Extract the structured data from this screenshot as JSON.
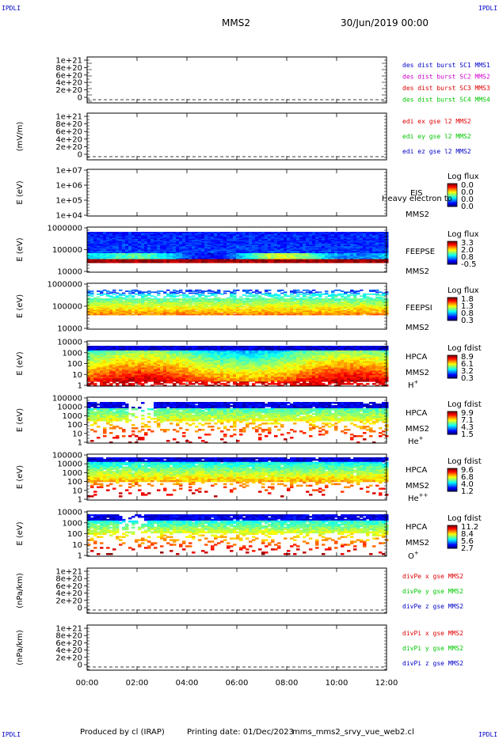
{
  "corner_tag": "IPDLI",
  "header": {
    "spacecraft": "MMS2",
    "date": "30/Jun/2019 00:00"
  },
  "footer": {
    "produced_by": "Produced by cl (IRAP)",
    "printing_date": "Printing date: 01/Dec/2023",
    "filename": "mms_mms2_srvy_vue_web2.cl"
  },
  "time_ticks": [
    "00:00",
    "02:00",
    "04:00",
    "06:00",
    "08:00",
    "10:00",
    "12:00"
  ],
  "colors": {
    "red": "#e00000",
    "green": "#00c800",
    "blue": "#0000c8",
    "magenta": "#d000d0"
  },
  "chart_data": [
    {
      "type": "line",
      "ylabel": "",
      "yticks": [
        "1e+21",
        "8e+20",
        "6e+20",
        "4e+20",
        "2e+20",
        "0"
      ],
      "legend": [
        {
          "text": "des dist burst SC1 MMS1",
          "color": "#0000c8"
        },
        {
          "text": "des dist burst SC2 MMS2",
          "color": "#d000d0"
        },
        {
          "text": "des dist burst SC3 MMS3",
          "color": "#e00000"
        },
        {
          "text": "des dist burst SC4 MMS4",
          "color": "#00c800"
        }
      ]
    },
    {
      "type": "line",
      "ylabel": "(mV/m)",
      "yticks": [
        "1e+21",
        "8e+20",
        "6e+20",
        "4e+20",
        "2e+20",
        "0"
      ],
      "legend": [
        {
          "text": "edi ex gse l2 MMS2",
          "color": "#e00000"
        },
        {
          "text": "edi ey gse l2 MMS2",
          "color": "#00c800"
        },
        {
          "text": "edi ez gse l2 MMS2",
          "color": "#0000c8"
        }
      ]
    },
    {
      "type": "heatmap",
      "ylabel": "E (eV)",
      "yticks": [
        "1e+07",
        "1e+06",
        "1e+05",
        "1e+04"
      ],
      "labels": [
        "EIS",
        "Heavy electron to",
        "MMS2"
      ],
      "colorbar": {
        "title": "Log flux",
        "ticks": [
          "0.0",
          "0.0",
          "0.0",
          "0.0"
        ]
      }
    },
    {
      "type": "heatmap",
      "ylabel": "E (eV)",
      "yticks": [
        "1000000",
        "100000",
        "10000"
      ],
      "labels": [
        "FEEPSE",
        "MMS2"
      ],
      "colorbar": {
        "title": "Log flux",
        "ticks": [
          "3.3",
          "2.0",
          "0.8",
          "-0.5"
        ]
      }
    },
    {
      "type": "heatmap",
      "ylabel": "E (eV)",
      "yticks": [
        "1000000",
        "100000",
        "10000"
      ],
      "labels": [
        "FEEPSI",
        "MMS2"
      ],
      "colorbar": {
        "title": "Log flux",
        "ticks": [
          "1.8",
          "1.3",
          "0.8",
          "0.3"
        ]
      }
    },
    {
      "type": "heatmap",
      "ylabel": "E (eV)",
      "yticks": [
        "10000",
        "1000",
        "100",
        "10",
        "1"
      ],
      "labels": [
        "HPCA",
        "MMS2"
      ],
      "species": "H",
      "charge": "+",
      "colorbar": {
        "title": "Log fdist",
        "ticks": [
          "8.9",
          "6.1",
          "3.2",
          "0.3"
        ]
      }
    },
    {
      "type": "heatmap",
      "ylabel": "E (eV)",
      "yticks": [
        "100000",
        "10000",
        "1000",
        "100",
        "10",
        "1"
      ],
      "labels": [
        "HPCA",
        "MMS2"
      ],
      "species": "He",
      "charge": "+",
      "colorbar": {
        "title": "Log fdist",
        "ticks": [
          "9.9",
          "7.1",
          "4.3",
          "1.5"
        ]
      }
    },
    {
      "type": "heatmap",
      "ylabel": "E (eV)",
      "yticks": [
        "100000",
        "10000",
        "1000",
        "100",
        "10",
        "1"
      ],
      "labels": [
        "HPCA",
        "MMS2"
      ],
      "species": "He",
      "charge": "++",
      "colorbar": {
        "title": "Log fdist",
        "ticks": [
          "9.6",
          "6.8",
          "4.0",
          "1.2"
        ]
      }
    },
    {
      "type": "heatmap",
      "ylabel": "E (eV)",
      "yticks": [
        "10000",
        "1000",
        "100",
        "10",
        "1"
      ],
      "labels": [
        "HPCA",
        "MMS2"
      ],
      "species": "O",
      "charge": "+",
      "colorbar": {
        "title": "Log fdist",
        "ticks": [
          "11.2",
          "8.4",
          "5.6",
          "2.7"
        ]
      }
    },
    {
      "type": "line",
      "ylabel": "(nPa/km)",
      "yticks": [
        "1e+21",
        "8e+20",
        "6e+20",
        "4e+20",
        "2e+20",
        "0"
      ],
      "legend": [
        {
          "text": "divPe x gse MMS2",
          "color": "#e00000"
        },
        {
          "text": "divPe y gse MMS2",
          "color": "#00c800"
        },
        {
          "text": "divPe z gse MMS2",
          "color": "#0000c8"
        }
      ]
    },
    {
      "type": "line",
      "ylabel": "(nPa/km)",
      "yticks": [
        "1e+21",
        "8e+20",
        "6e+20",
        "4e+20",
        "2e+20",
        "0"
      ],
      "legend": [
        {
          "text": "divPi x gse MMS2",
          "color": "#e00000"
        },
        {
          "text": "divPi y gse MMS2",
          "color": "#00c800"
        },
        {
          "text": "divPi z gse MMS2",
          "color": "#0000c8"
        }
      ]
    }
  ]
}
